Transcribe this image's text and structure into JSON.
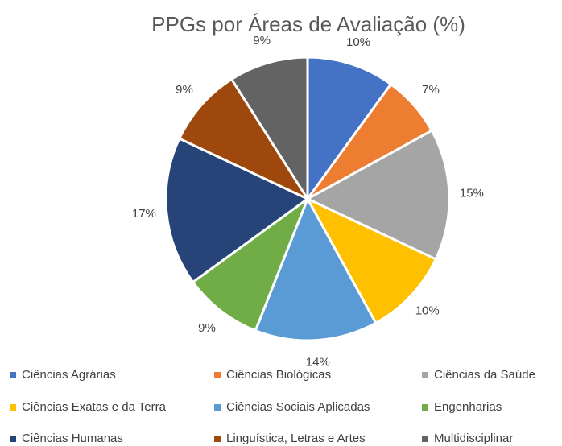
{
  "chart_data": {
    "type": "pie",
    "title": "PPGs por Áreas de Avaliação (%)",
    "categories": [
      "Ciências Agrárias",
      "Ciências Biológicas",
      "Ciências da Saúde",
      "Ciências Exatas e da Terra",
      "Ciências Sociais Aplicadas",
      "Engenharias",
      "Ciências Humanas",
      "Linguística, Letras e Artes",
      "Multidisciplinar"
    ],
    "values": [
      10,
      7,
      15,
      10,
      14,
      9,
      17,
      9,
      9
    ],
    "value_labels": [
      "10%",
      "7%",
      "15%",
      "10%",
      "14%",
      "9%",
      "17%",
      "9%",
      "9%"
    ],
    "colors": [
      "#4472c4",
      "#ed7d31",
      "#a5a5a5",
      "#ffc000",
      "#5b9bd5",
      "#70ad47",
      "#264478",
      "#9e480e",
      "#636363"
    ],
    "legend": "bottom"
  }
}
